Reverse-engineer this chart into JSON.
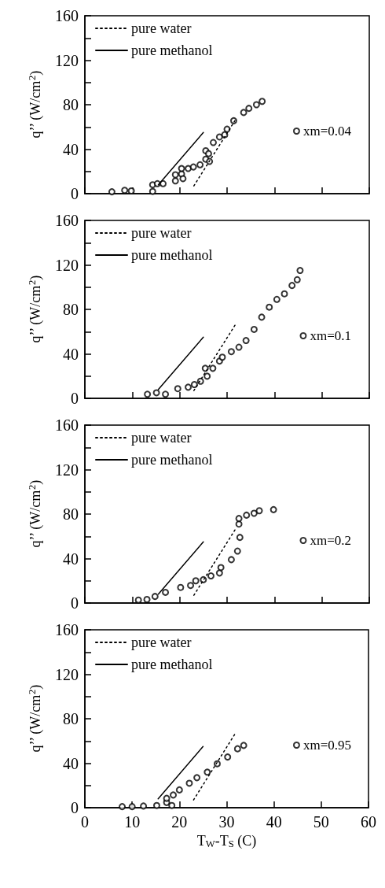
{
  "chart_data": [
    {
      "type": "scatter",
      "ylabel": "q’’ (W/cm$^{2}$)",
      "xlim": [
        0,
        60
      ],
      "xticks": [
        0,
        10,
        20,
        30,
        40,
        50,
        60
      ],
      "ylim": [
        0,
        160
      ],
      "yticks": [
        0,
        {
          "value": 20,
          "label": null
        },
        40,
        {
          "value": 60,
          "label": null
        },
        80,
        {
          "value": 100,
          "label": null
        },
        120,
        {
          "value": 140,
          "label": null
        },
        160
      ],
      "tick_labels": "y",
      "grid": false,
      "legend": "top left",
      "series": [
        {
          "name": "pure water",
          "type": "line",
          "line_style": "dotted",
          "marker": "none",
          "color": "#000000",
          "x": [
            23,
            32
          ],
          "values": [
            7,
            68
          ]
        },
        {
          "name": "pure methanol",
          "type": "line",
          "line_style": "solid",
          "marker": "none",
          "color": "#000000",
          "x": [
            15.5,
            25
          ],
          "values": [
            8,
            55
          ]
        },
        {
          "name": "xm=0.04",
          "type": "scatter",
          "marker": "circle",
          "color": "#000000",
          "x": [
            5.7,
            8.4,
            9.8,
            14.3,
            14.3,
            15.3,
            16.5,
            19.1,
            19.1,
            20.4,
            20.4,
            20.7,
            21.8,
            22.9,
            24.3,
            25.5,
            25.5,
            26.1,
            26.3,
            27.1,
            28.4,
            29.5,
            30,
            31.4,
            33.5,
            34.6,
            36.2,
            37.4
          ],
          "values": [
            1.7,
            3,
            2.5,
            2,
            8,
            9,
            9,
            11.5,
            17,
            17.7,
            22.6,
            13.5,
            22.6,
            24,
            26,
            31,
            38.6,
            36,
            29,
            46,
            51,
            53,
            58,
            65.6,
            73,
            76.7,
            80,
            83
          ]
        }
      ]
    },
    {
      "type": "scatter",
      "ylabel": "q’’ (W/cm$^{2}$)",
      "xlim": [
        0,
        60
      ],
      "xticks": [
        0,
        10,
        20,
        30,
        40,
        50,
        60
      ],
      "ylim": [
        0,
        160
      ],
      "yticks": [
        0,
        {
          "value": 20,
          "label": null
        },
        40,
        {
          "value": 60,
          "label": null
        },
        80,
        {
          "value": 100,
          "label": null
        },
        120,
        {
          "value": 140,
          "label": null
        },
        160
      ],
      "tick_labels": "y",
      "grid": false,
      "legend": "top left",
      "series": [
        {
          "name": "pure water",
          "type": "line",
          "line_style": "dotted",
          "marker": "none",
          "color": "#000000",
          "x": [
            23,
            32
          ],
          "values": [
            7,
            68
          ]
        },
        {
          "name": "pure methanol",
          "type": "line",
          "line_style": "solid",
          "marker": "none",
          "color": "#000000",
          "x": [
            15.5,
            25
          ],
          "values": [
            8,
            55
          ]
        },
        {
          "name": "xm=0.1",
          "type": "scatter",
          "marker": "circle",
          "color": "#000000",
          "x": [
            13.2,
            15.1,
            17,
            19.6,
            21.8,
            23.1,
            24.4,
            25.8,
            25.4,
            27,
            28.4,
            29,
            30.9,
            32.5,
            34,
            35.7,
            37.3,
            38.9,
            40.5,
            42.1,
            43.7,
            44.8,
            45.4
          ],
          "values": [
            3.7,
            5,
            3.7,
            8.7,
            10,
            12.4,
            15.4,
            19.9,
            27,
            27,
            33.5,
            37,
            42,
            46,
            52,
            62,
            73,
            82,
            89,
            94,
            101.5,
            106.7,
            115
          ]
        }
      ]
    },
    {
      "type": "scatter",
      "ylabel": "q’’ (W/cm$^{2}$)",
      "xlim": [
        0,
        60
      ],
      "xticks": [
        0,
        10,
        20,
        30,
        40,
        50,
        60
      ],
      "ylim": [
        0,
        160
      ],
      "yticks": [
        0,
        {
          "value": 20,
          "label": null
        },
        40,
        {
          "value": 60,
          "label": null
        },
        80,
        {
          "value": 100,
          "label": null
        },
        120,
        {
          "value": 140,
          "label": null
        },
        160
      ],
      "tick_labels": "y",
      "grid": false,
      "legend": "top left",
      "series": [
        {
          "name": "pure water",
          "type": "line",
          "line_style": "dotted",
          "marker": "none",
          "color": "#000000",
          "x": [
            23,
            32
          ],
          "values": [
            7,
            68
          ]
        },
        {
          "name": "pure methanol",
          "type": "line",
          "line_style": "solid",
          "marker": "none",
          "color": "#000000",
          "x": [
            15.5,
            25
          ],
          "values": [
            8,
            55
          ]
        },
        {
          "name": "xm=0.2",
          "type": "scatter",
          "marker": "circle",
          "color": "#000000",
          "x": [
            11.3,
            13.1,
            14.8,
            17,
            20.2,
            22.3,
            23.4,
            25,
            26.6,
            28.4,
            28.7,
            30.9,
            32.2,
            32.7,
            32.5,
            32.5,
            34.1,
            35.7,
            36.8,
            39.8
          ],
          "values": [
            2.7,
            3.2,
            5.9,
            9.6,
            14,
            15.8,
            20,
            21,
            24.4,
            27,
            31.9,
            39,
            46.7,
            59,
            71,
            76,
            79,
            80.7,
            83,
            84
          ]
        }
      ]
    },
    {
      "type": "scatter",
      "xlabel": "T$_{W}$-T$_{S}$ (C)",
      "ylabel": "q’’ (W/cm$^{2}$)",
      "xlim": [
        0,
        60
      ],
      "xticks": [
        0,
        10,
        20,
        30,
        40,
        50,
        60
      ],
      "ylim": [
        0,
        160
      ],
      "yticks": [
        0,
        {
          "value": 20,
          "label": null
        },
        40,
        {
          "value": 60,
          "label": null
        },
        80,
        {
          "value": 100,
          "label": null
        },
        120,
        {
          "value": 140,
          "label": null
        },
        160
      ],
      "grid": false,
      "legend": "top left",
      "series": [
        {
          "name": "pure water",
          "type": "line",
          "line_style": "dotted",
          "marker": "none",
          "color": "#000000",
          "x": [
            23,
            32
          ],
          "values": [
            7,
            68
          ]
        },
        {
          "name": "pure methanol",
          "type": "line",
          "line_style": "solid",
          "marker": "none",
          "color": "#000000",
          "x": [
            15.5,
            25
          ],
          "values": [
            8,
            55
          ]
        },
        {
          "name": "xm=0.95",
          "type": "scatter",
          "marker": "circle",
          "color": "#000000",
          "x": [
            7.9,
            10,
            12.4,
            15.2,
            17.3,
            17.3,
            18.4,
            18.7,
            20,
            22.1,
            23.7,
            25.9,
            28,
            30.2,
            32.3,
            33.6
          ],
          "values": [
            1,
            1,
            1.5,
            2,
            4.7,
            8.4,
            2,
            11.4,
            16,
            22,
            27,
            32,
            39.5,
            45.6,
            53,
            56
          ]
        }
      ]
    }
  ]
}
